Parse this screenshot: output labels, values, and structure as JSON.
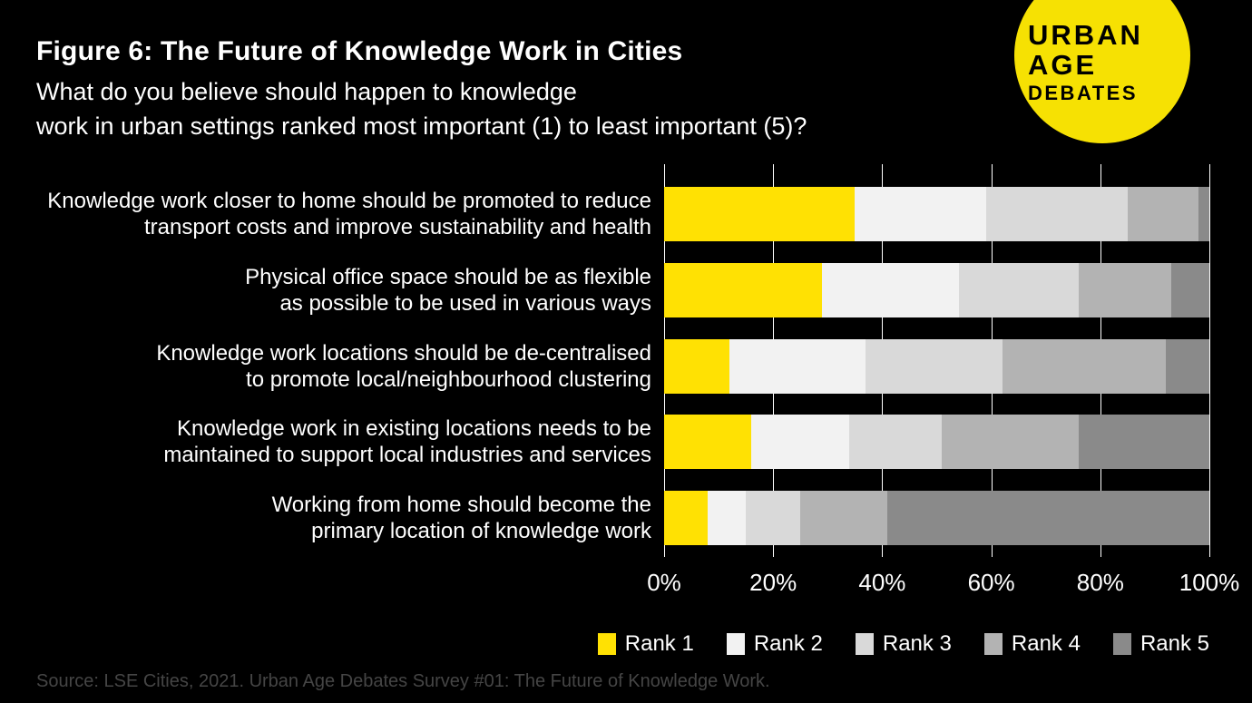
{
  "header": {
    "title": "Figure 6: The Future of Knowledge Work in Cities",
    "subtitle_lines": [
      "What do you believe should happen to knowledge",
      "work in urban settings ranked most important (1) to least important (5)?"
    ]
  },
  "logo": {
    "lines": [
      "URBAN",
      "AGE",
      "DEBATES"
    ],
    "bg_color": "#F6E103",
    "text_color": "#000000"
  },
  "chart_data": {
    "type": "bar",
    "orientation": "horizontal-stacked",
    "title": "Figure 6: The Future of Knowledge Work in Cities",
    "subtitle": "What do you believe should happen to knowledge work in urban settings ranked most important (1) to least important (5)?",
    "categories": [
      "Knowledge work closer to home should be promoted to reduce transport costs and improve sustainability and health",
      "Physical office space should be as flexible as possible to be used in various ways",
      "Knowledge work locations should be de-centralised to promote local/neighbourhood clustering",
      "Knowledge work in existing locations needs to be maintained to support local industries and services",
      "Working from home should become the primary location of knowledge work"
    ],
    "category_lines": [
      [
        "Knowledge work closer to home should be promoted to reduce",
        "transport costs and improve sustainability and health"
      ],
      [
        "Physical office space should be as flexible",
        "as possible to be used in various ways"
      ],
      [
        "Knowledge work locations should be de-centralised",
        "to promote local/neighbourhood clustering"
      ],
      [
        "Knowledge work in existing locations needs to be",
        "maintained to support local industries and services"
      ],
      [
        "Working from home should become the",
        "primary location of knowledge work"
      ]
    ],
    "series": [
      {
        "name": "Rank 1",
        "color": "#FFE103",
        "values": [
          35,
          29,
          12,
          16,
          8
        ]
      },
      {
        "name": "Rank 2",
        "color": "#F2F2F2",
        "values": [
          24,
          25,
          25,
          18,
          7
        ]
      },
      {
        "name": "Rank 3",
        "color": "#D9D9D9",
        "values": [
          26,
          22,
          25,
          17,
          10
        ]
      },
      {
        "name": "Rank 4",
        "color": "#B3B3B3",
        "values": [
          13,
          17,
          30,
          25,
          16
        ]
      },
      {
        "name": "Rank 5",
        "color": "#8A8A8A",
        "values": [
          2,
          7,
          8,
          24,
          59
        ]
      }
    ],
    "x_ticks": [
      "0%",
      "20%",
      "40%",
      "60%",
      "80%",
      "100%"
    ],
    "xlim": [
      0,
      100
    ],
    "xlabel": "",
    "ylabel": "",
    "grid": true,
    "gridline_color": "#FFFFFF",
    "legend_position": "bottom-right"
  },
  "source": "Source: LSE Cities, 2021. Urban Age Debates Survey #01: The Future of Knowledge Work.",
  "colors": {
    "background": "#000000",
    "text": "#FFFFFF",
    "source_text": "#454545"
  }
}
